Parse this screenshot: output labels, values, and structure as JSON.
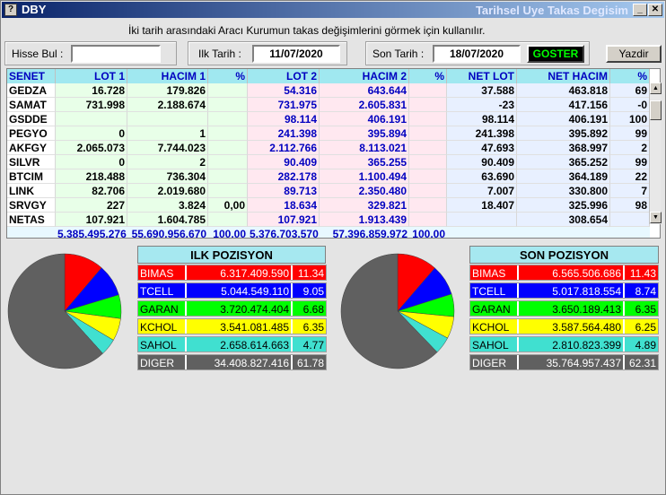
{
  "window": {
    "title": "DBY",
    "title_right": "Tarihsel Uye Takas Degisim"
  },
  "description": "İki tarih arasındaki  Aracı Kurumun takas değişimlerini görmek için kullanılır.",
  "search": {
    "label": "Hisse Bul :",
    "value": ""
  },
  "start": {
    "label": "Ilk Tarih :",
    "value": "11/07/2020"
  },
  "end": {
    "label": "Son Tarih :",
    "value": "18/07/2020"
  },
  "buttons": {
    "show": "GOSTER",
    "print": "Yazdir"
  },
  "table": {
    "headers": [
      "SENET",
      "LOT 1",
      "HACIM 1",
      "%",
      "LOT 2",
      "HACIM 2",
      "%",
      "NET LOT",
      "NET HACIM",
      "%"
    ],
    "rows": [
      [
        "GEDZA",
        "16.728",
        "179.826",
        "",
        "54.316",
        "643.644",
        "",
        "37.588",
        "463.818",
        "69"
      ],
      [
        "SAMAT",
        "731.998",
        "2.188.674",
        "",
        "731.975",
        "2.605.831",
        "",
        "-23",
        "417.156",
        "-0"
      ],
      [
        "GSDDE",
        "",
        "",
        "",
        "98.114",
        "406.191",
        "",
        "98.114",
        "406.191",
        "100"
      ],
      [
        "PEGYO",
        "0",
        "1",
        "",
        "241.398",
        "395.894",
        "",
        "241.398",
        "395.892",
        "99"
      ],
      [
        "AKFGY",
        "2.065.073",
        "7.744.023",
        "",
        "2.112.766",
        "8.113.021",
        "",
        "47.693",
        "368.997",
        "2"
      ],
      [
        "SILVR",
        "0",
        "2",
        "",
        "90.409",
        "365.255",
        "",
        "90.409",
        "365.252",
        "99"
      ],
      [
        "BTCIM",
        "218.488",
        "736.304",
        "",
        "282.178",
        "1.100.494",
        "",
        "63.690",
        "364.189",
        "22"
      ],
      [
        "LINK",
        "82.706",
        "2.019.680",
        "",
        "89.713",
        "2.350.480",
        "",
        "7.007",
        "330.800",
        "7"
      ],
      [
        "SRVGY",
        "227",
        "3.824",
        "0,00",
        "18.634",
        "329.821",
        "",
        "18.407",
        "325.996",
        "98"
      ],
      [
        "NETAS",
        "107.921",
        "1.604.785",
        "",
        "107.921",
        "1.913.439",
        "",
        "",
        "308.654",
        ""
      ]
    ],
    "totals": [
      "",
      "5.385.495.276",
      "55.690.956.670",
      "100,00",
      "5.376.703.570",
      "57.396.859.972",
      "100,00",
      "",
      "",
      ""
    ]
  },
  "ilk": {
    "title": "ILK POZISYON",
    "rows": [
      {
        "name": "BIMAS",
        "value": "6.317.409.590",
        "pct": "11.34",
        "pct_num": 11.34,
        "color": "#ff0000"
      },
      {
        "name": "TCELL",
        "value": "5.044.549.110",
        "pct": "9.05",
        "pct_num": 9.05,
        "color": "#0000ff"
      },
      {
        "name": "GARAN",
        "value": "3.720.474.404",
        "pct": "6.68",
        "pct_num": 6.68,
        "color": "#00ff00"
      },
      {
        "name": "KCHOL",
        "value": "3.541.081.485",
        "pct": "6.35",
        "pct_num": 6.35,
        "color": "#ffff00"
      },
      {
        "name": "SAHOL",
        "value": "2.658.614.663",
        "pct": "4.77",
        "pct_num": 4.77,
        "color": "#40e0d0"
      },
      {
        "name": "DIGER",
        "value": "34.408.827.416",
        "pct": "61.78",
        "pct_num": 61.78,
        "color": "#606060"
      }
    ]
  },
  "son": {
    "title": "SON POZISYON",
    "rows": [
      {
        "name": "BIMAS",
        "value": "6.565.506.686",
        "pct": "11.43",
        "pct_num": 11.43,
        "color": "#ff0000"
      },
      {
        "name": "TCELL",
        "value": "5.017.818.554",
        "pct": "8.74",
        "pct_num": 8.74,
        "color": "#0000ff"
      },
      {
        "name": "GARAN",
        "value": "3.650.189.413",
        "pct": "6.35",
        "pct_num": 6.35,
        "color": "#00ff00"
      },
      {
        "name": "KCHOL",
        "value": "3.587.564.480",
        "pct": "6.25",
        "pct_num": 6.25,
        "color": "#ffff00"
      },
      {
        "name": "SAHOL",
        "value": "2.810.823.399",
        "pct": "4.89",
        "pct_num": 4.89,
        "color": "#40e0d0"
      },
      {
        "name": "DIGER",
        "value": "35.764.957.437",
        "pct": "62.31",
        "pct_num": 62.31,
        "color": "#606060"
      }
    ]
  }
}
